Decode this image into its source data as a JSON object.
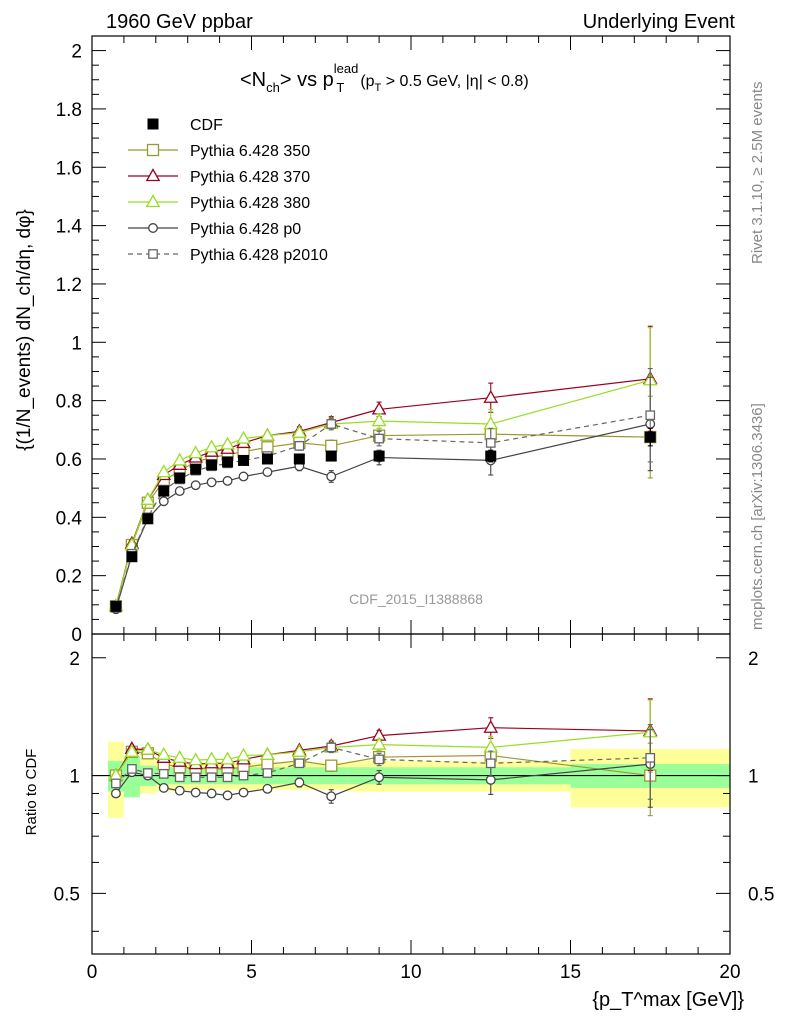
{
  "header": {
    "left": "1960 GeV ppbar",
    "right": "Underlying Event"
  },
  "side_labels": {
    "rivet": "Rivet 3.1.10, ≥ 2.5M events",
    "mcplots": "mcplots.cern.ch [arXiv:1306.3436]"
  },
  "watermark": "CDF_2015_I1388868",
  "colors": {
    "cdf": "#000000",
    "p350": "#999933",
    "p370": "#990022",
    "p380": "#99dd22",
    "p0": "#444444",
    "p2010": "#666666",
    "band_inner": "#99ff99",
    "band_outer": "#ffff99"
  },
  "chart_data": [
    {
      "type": "scatter",
      "title_parts": {
        "main": "<N",
        "sub_ch": "ch",
        "vs": "> vs p",
        "sup": "lead",
        "sub_t": "T",
        "cut": "(p",
        "cut_sub": "T",
        "cut_rest": " > 0.5 GeV, |η| < 0.8)"
      },
      "ylabel": "{(1/N_events) dN_ch/dη, dφ}",
      "xlim": [
        0,
        20
      ],
      "ylim": [
        0,
        2.05
      ],
      "y_ticks": [
        "0",
        "0.2",
        "0.4",
        "0.6",
        "0.8",
        "1",
        "1.2",
        "1.4",
        "1.6",
        "1.8",
        "2"
      ],
      "x": [
        0.75,
        1.25,
        1.75,
        2.25,
        2.75,
        3.25,
        3.75,
        4.25,
        4.75,
        5.5,
        6.5,
        7.5,
        9.0,
        12.5,
        17.5
      ],
      "xerr": [
        0.25,
        0.25,
        0.25,
        0.25,
        0.25,
        0.25,
        0.25,
        0.25,
        0.25,
        0.5,
        0.5,
        0.5,
        1.0,
        2.5,
        2.5
      ],
      "legend": [
        {
          "label": "CDF",
          "key": "cdf"
        },
        {
          "label": "Pythia 6.428 350",
          "key": "p350"
        },
        {
          "label": "Pythia 6.428 370",
          "key": "p370"
        },
        {
          "label": "Pythia 6.428 380",
          "key": "p380"
        },
        {
          "label": "Pythia 6.428 p0",
          "key": "p0"
        },
        {
          "label": "Pythia 6.428 p2010",
          "key": "p2010"
        }
      ],
      "series": [
        {
          "key": "cdf",
          "name": "CDF",
          "marker": "filled-square",
          "values": [
            0.095,
            0.265,
            0.395,
            0.49,
            0.535,
            0.565,
            0.58,
            0.59,
            0.595,
            0.6,
            0.6,
            0.61,
            0.61,
            0.61,
            0.675
          ],
          "yerr": [
            0.005,
            0.006,
            0.007,
            0.008,
            0.008,
            0.008,
            0.008,
            0.009,
            0.009,
            0.009,
            0.01,
            0.012,
            0.015,
            0.02,
            0.03
          ]
        },
        {
          "key": "p350",
          "name": "Pythia 6.428 350",
          "marker": "open-square",
          "values": [
            0.095,
            0.305,
            0.45,
            0.525,
            0.56,
            0.59,
            0.605,
            0.615,
            0.625,
            0.64,
            0.655,
            0.645,
            0.68,
            0.685,
            0.675
          ],
          "yerr": [
            0.003,
            0.004,
            0.005,
            0.006,
            0.007,
            0.008,
            0.009,
            0.01,
            0.011,
            0.012,
            0.015,
            0.02,
            0.025,
            0.04,
            0.14
          ]
        },
        {
          "key": "p370",
          "name": "Pythia 6.428 370",
          "marker": "open-triangle",
          "values": [
            0.095,
            0.31,
            0.46,
            0.545,
            0.58,
            0.605,
            0.625,
            0.635,
            0.655,
            0.68,
            0.695,
            0.725,
            0.77,
            0.81,
            0.875
          ],
          "yerr": [
            0.003,
            0.004,
            0.005,
            0.006,
            0.007,
            0.008,
            0.009,
            0.01,
            0.011,
            0.012,
            0.015,
            0.02,
            0.025,
            0.05,
            0.18
          ]
        },
        {
          "key": "p380",
          "name": "Pythia 6.428 380",
          "marker": "open-triangle",
          "values": [
            0.095,
            0.305,
            0.46,
            0.555,
            0.595,
            0.62,
            0.64,
            0.65,
            0.67,
            0.68,
            0.69,
            0.72,
            0.73,
            0.72,
            0.87
          ],
          "yerr": [
            0.003,
            0.004,
            0.005,
            0.006,
            0.007,
            0.008,
            0.009,
            0.01,
            0.011,
            0.012,
            0.015,
            0.02,
            0.025,
            0.05,
            0.18
          ]
        },
        {
          "key": "p0",
          "name": "Pythia 6.428 p0",
          "marker": "open-circle",
          "values": [
            0.085,
            0.27,
            0.395,
            0.455,
            0.49,
            0.51,
            0.52,
            0.525,
            0.54,
            0.555,
            0.575,
            0.54,
            0.605,
            0.595,
            0.72
          ],
          "yerr": [
            0.003,
            0.004,
            0.005,
            0.006,
            0.007,
            0.008,
            0.009,
            0.01,
            0.011,
            0.012,
            0.015,
            0.02,
            0.025,
            0.05,
            0.16
          ]
        },
        {
          "key": "p2010",
          "name": "Pythia 6.428 p2010",
          "marker": "open-square-dashed",
          "values": [
            0.09,
            0.275,
            0.4,
            0.495,
            0.53,
            0.56,
            0.575,
            0.585,
            0.595,
            0.61,
            0.645,
            0.72,
            0.67,
            0.655,
            0.75
          ],
          "yerr": [
            0.003,
            0.004,
            0.005,
            0.006,
            0.007,
            0.008,
            0.009,
            0.01,
            0.011,
            0.012,
            0.015,
            0.02,
            0.025,
            0.05,
            0.16
          ]
        }
      ]
    },
    {
      "type": "scatter",
      "ylabel": "Ratio to CDF",
      "xlabel": "{p_T^max [GeV]}",
      "xlim": [
        0,
        20
      ],
      "ylim": [
        0.35,
        2.3
      ],
      "yscale": "log",
      "y_ticks": [
        "0.5",
        "1",
        "2"
      ],
      "x_ticks": [
        "0",
        "5",
        "10",
        "15",
        "20"
      ],
      "reference_line": 1,
      "band_inner": [
        0.09,
        0.12,
        0.06,
        0.05,
        0.05,
        0.05,
        0.05,
        0.05,
        0.05,
        0.05,
        0.05,
        0.05,
        0.05,
        0.05,
        0.07
      ],
      "band_outer": [
        0.22,
        0.12,
        0.1,
        0.09,
        0.09,
        0.08,
        0.08,
        0.08,
        0.08,
        0.08,
        0.08,
        0.08,
        0.09,
        0.09,
        0.17
      ],
      "series": [
        {
          "key": "p350",
          "values": [
            1.0,
            1.15,
            1.14,
            1.07,
            1.05,
            1.045,
            1.04,
            1.04,
            1.05,
            1.07,
            1.09,
            1.06,
            1.115,
            1.125,
            1.0
          ],
          "yerr": [
            0.03,
            0.02,
            0.02,
            0.02,
            0.02,
            0.02,
            0.02,
            0.02,
            0.02,
            0.02,
            0.025,
            0.035,
            0.04,
            0.07,
            0.21
          ]
        },
        {
          "key": "p370",
          "values": [
            1.0,
            1.17,
            1.165,
            1.11,
            1.085,
            1.07,
            1.075,
            1.075,
            1.1,
            1.13,
            1.16,
            1.19,
            1.265,
            1.325,
            1.3
          ],
          "yerr": [
            0.03,
            0.02,
            0.02,
            0.02,
            0.02,
            0.02,
            0.02,
            0.02,
            0.02,
            0.02,
            0.025,
            0.035,
            0.04,
            0.08,
            0.27
          ]
        },
        {
          "key": "p380",
          "values": [
            1.0,
            1.15,
            1.165,
            1.13,
            1.11,
            1.095,
            1.1,
            1.1,
            1.125,
            1.13,
            1.15,
            1.18,
            1.2,
            1.18,
            1.29
          ],
          "yerr": [
            0.03,
            0.02,
            0.02,
            0.02,
            0.02,
            0.02,
            0.02,
            0.02,
            0.02,
            0.02,
            0.025,
            0.035,
            0.04,
            0.08,
            0.27
          ]
        },
        {
          "key": "p0",
          "values": [
            0.9,
            1.02,
            1.0,
            0.93,
            0.915,
            0.905,
            0.9,
            0.89,
            0.905,
            0.925,
            0.96,
            0.885,
            0.99,
            0.975,
            1.07
          ],
          "yerr": [
            0.02,
            0.02,
            0.02,
            0.02,
            0.02,
            0.02,
            0.02,
            0.02,
            0.02,
            0.02,
            0.025,
            0.035,
            0.04,
            0.08,
            0.24
          ]
        },
        {
          "key": "p2010",
          "values": [
            0.955,
            1.04,
            1.015,
            1.01,
            0.99,
            0.99,
            0.99,
            0.99,
            1.0,
            1.015,
            1.075,
            1.18,
            1.1,
            1.075,
            1.11
          ],
          "yerr": [
            0.02,
            0.02,
            0.02,
            0.02,
            0.02,
            0.02,
            0.02,
            0.02,
            0.02,
            0.02,
            0.025,
            0.035,
            0.04,
            0.08,
            0.24
          ]
        }
      ]
    }
  ]
}
